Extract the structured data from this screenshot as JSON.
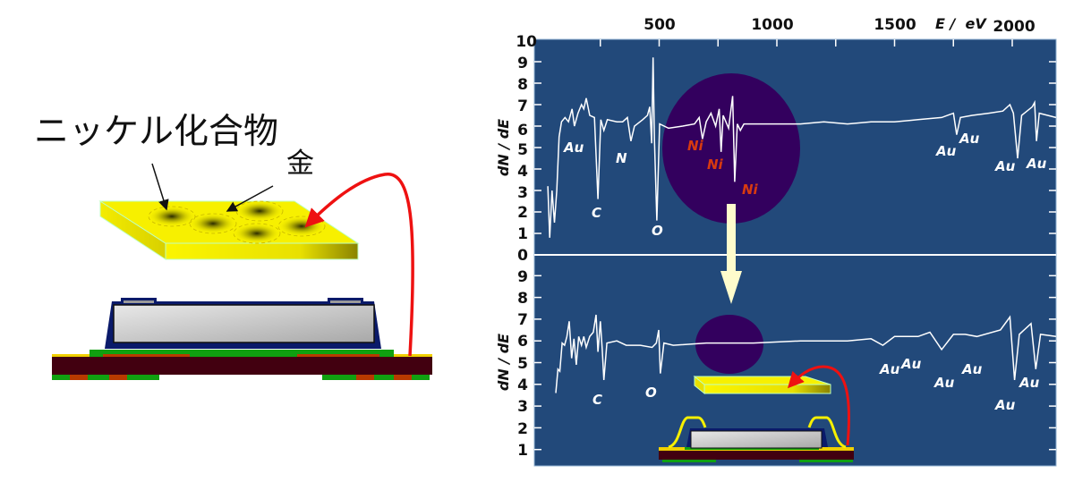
{
  "left_diagram": {
    "nickel_compound_label": "ニッケル化合物",
    "gold_label": "金"
  },
  "colors": {
    "plot_bg": "#22497a",
    "highlight_circle": "#33005e",
    "gold": "#f7f000",
    "arrow_red": "#ee1111",
    "down_arrow": "#fffccc"
  },
  "chart_data": [
    {
      "type": "line",
      "panel": "top",
      "xlabel": "E /  eV",
      "ylabel": "dN / dE",
      "x_ticks": [
        "500",
        "1000",
        "1500",
        "2000"
      ],
      "y_ticks": [
        "0",
        "1",
        "2",
        "3",
        "4",
        "5",
        "6",
        "7",
        "8",
        "9",
        "10"
      ],
      "xlim": [
        0,
        2186
      ],
      "ylim": [
        0,
        10
      ],
      "points": [
        [
          27,
          3.2
        ],
        [
          35,
          0.8
        ],
        [
          45,
          3.0
        ],
        [
          55,
          1.5
        ],
        [
          65,
          3.0
        ],
        [
          75,
          5.5
        ],
        [
          85,
          6.2
        ],
        [
          100,
          6.4
        ],
        [
          115,
          6.2
        ],
        [
          130,
          6.8
        ],
        [
          140,
          6.0
        ],
        [
          155,
          6.6
        ],
        [
          170,
          7.0
        ],
        [
          180,
          6.8
        ],
        [
          190,
          7.3
        ],
        [
          205,
          6.5
        ],
        [
          225,
          6.4
        ],
        [
          240,
          2.6
        ],
        [
          252,
          6.3
        ],
        [
          265,
          5.8
        ],
        [
          280,
          6.3
        ],
        [
          320,
          6.2
        ],
        [
          345,
          6.2
        ],
        [
          365,
          6.4
        ],
        [
          380,
          5.3
        ],
        [
          395,
          6.0
        ],
        [
          430,
          6.3
        ],
        [
          450,
          6.5
        ],
        [
          460,
          6.9
        ],
        [
          468,
          5.2
        ],
        [
          474,
          9.2
        ],
        [
          480,
          5.4
        ],
        [
          490,
          1.6
        ],
        [
          502,
          6.1
        ],
        [
          540,
          5.9
        ],
        [
          600,
          6.0
        ],
        [
          650,
          6.1
        ],
        [
          670,
          6.4
        ],
        [
          684,
          5.4
        ],
        [
          700,
          6.2
        ],
        [
          720,
          6.6
        ],
        [
          740,
          6.0
        ],
        [
          755,
          6.8
        ],
        [
          763,
          4.8
        ],
        [
          772,
          6.5
        ],
        [
          795,
          5.9
        ],
        [
          812,
          7.4
        ],
        [
          821,
          3.4
        ],
        [
          832,
          6.1
        ],
        [
          845,
          5.8
        ],
        [
          860,
          6.1
        ],
        [
          920,
          6.1
        ],
        [
          1000,
          6.1
        ],
        [
          1100,
          6.1
        ],
        [
          1200,
          6.2
        ],
        [
          1300,
          6.1
        ],
        [
          1400,
          6.2
        ],
        [
          1500,
          6.2
        ],
        [
          1600,
          6.3
        ],
        [
          1700,
          6.4
        ],
        [
          1750,
          6.6
        ],
        [
          1764,
          5.6
        ],
        [
          1780,
          6.4
        ],
        [
          1830,
          6.5
        ],
        [
          1900,
          6.6
        ],
        [
          1960,
          6.7
        ],
        [
          1990,
          7.0
        ],
        [
          2005,
          6.6
        ],
        [
          2023,
          4.5
        ],
        [
          2040,
          6.5
        ],
        [
          2085,
          6.9
        ],
        [
          2095,
          7.1
        ],
        [
          2103,
          5.3
        ],
        [
          2115,
          6.6
        ],
        [
          2186,
          6.4
        ]
      ],
      "annotations": [
        {
          "label": "Au",
          "color": "white"
        },
        {
          "label": "C",
          "color": "white"
        },
        {
          "label": "N",
          "color": "white"
        },
        {
          "label": "O",
          "color": "white"
        },
        {
          "label": "Ni",
          "color": "red"
        },
        {
          "label": "Ni",
          "color": "red"
        },
        {
          "label": "Ni",
          "color": "red"
        },
        {
          "label": "Au",
          "color": "white"
        },
        {
          "label": "Au",
          "color": "white"
        },
        {
          "label": "Au",
          "color": "white"
        },
        {
          "label": "Au",
          "color": "white"
        }
      ]
    },
    {
      "type": "line",
      "panel": "bottom",
      "ylabel": "dN / dE",
      "y_ticks": [
        "1",
        "2",
        "3",
        "4",
        "5",
        "6",
        "7",
        "8",
        "9"
      ],
      "xlim": [
        0,
        2186
      ],
      "ylim": [
        0,
        10
      ],
      "points": [
        [
          61,
          3.6
        ],
        [
          70,
          4.7
        ],
        [
          78,
          4.6
        ],
        [
          88,
          5.9
        ],
        [
          98,
          5.8
        ],
        [
          108,
          6.2
        ],
        [
          118,
          6.9
        ],
        [
          128,
          5.2
        ],
        [
          138,
          6.1
        ],
        [
          148,
          4.9
        ],
        [
          158,
          6.2
        ],
        [
          170,
          5.8
        ],
        [
          180,
          6.2
        ],
        [
          190,
          5.7
        ],
        [
          205,
          6.2
        ],
        [
          220,
          6.4
        ],
        [
          232,
          7.2
        ],
        [
          240,
          5.5
        ],
        [
          250,
          6.9
        ],
        [
          258,
          5.6
        ],
        [
          265,
          4.2
        ],
        [
          278,
          5.9
        ],
        [
          320,
          6.0
        ],
        [
          360,
          5.8
        ],
        [
          420,
          5.8
        ],
        [
          470,
          5.7
        ],
        [
          488,
          5.9
        ],
        [
          498,
          6.5
        ],
        [
          505,
          4.5
        ],
        [
          520,
          5.9
        ],
        [
          560,
          5.8
        ],
        [
          700,
          5.9
        ],
        [
          900,
          5.9
        ],
        [
          1100,
          6.0
        ],
        [
          1300,
          6.0
        ],
        [
          1400,
          6.1
        ],
        [
          1450,
          5.8
        ],
        [
          1500,
          6.2
        ],
        [
          1600,
          6.2
        ],
        [
          1650,
          6.4
        ],
        [
          1700,
          5.6
        ],
        [
          1750,
          6.3
        ],
        [
          1800,
          6.3
        ],
        [
          1850,
          6.2
        ],
        [
          1950,
          6.5
        ],
        [
          1990,
          7.1
        ],
        [
          2010,
          4.2
        ],
        [
          2030,
          6.3
        ],
        [
          2080,
          6.8
        ],
        [
          2100,
          4.7
        ],
        [
          2120,
          6.3
        ],
        [
          2186,
          6.2
        ]
      ],
      "annotations": [
        {
          "label": "C",
          "color": "white"
        },
        {
          "label": "O",
          "color": "white"
        },
        {
          "label": "Au",
          "color": "white"
        },
        {
          "label": "Au",
          "color": "white"
        },
        {
          "label": "Au",
          "color": "white"
        },
        {
          "label": "Au",
          "color": "white"
        },
        {
          "label": "Au",
          "color": "white"
        },
        {
          "label": "Au",
          "color": "white"
        }
      ]
    }
  ]
}
